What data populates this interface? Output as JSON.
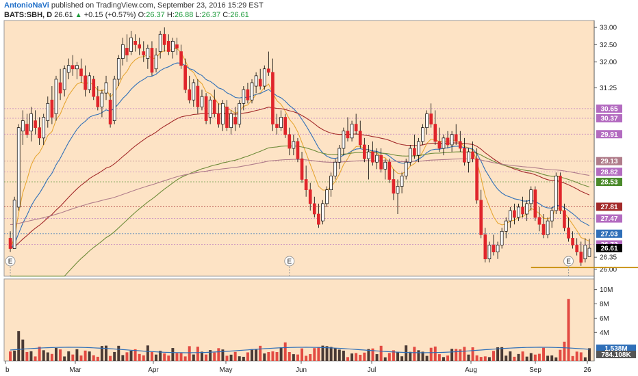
{
  "header": {
    "author": "AntonioNaVi",
    "published": "published on TradingView.com, September 23, 2016 15:29 EST",
    "symbol": "BATS:SBH, D",
    "last": "26.61",
    "change": "+0.15 (+0.57%)",
    "o_label": "O:",
    "o_value": "26.37",
    "h_label": "H:",
    "h_value": "26.88",
    "l_label": "L:",
    "l_value": "26.37",
    "c_label": "C:",
    "c_value": "26.61"
  },
  "colors": {
    "background": "#fde3c5",
    "up_candle": "#ffffff",
    "down_candle": "#e0252b",
    "ema_fast": "#e6a633",
    "ema_mid": "#2f6fb8",
    "sma_100": "#a32a2a",
    "sma_150": "#6f8c3a",
    "sma_200": "#b07c8a",
    "support": "#c58a00"
  },
  "chart_data": {
    "type": "candlestick",
    "ylim": [
      25.8,
      33.2
    ],
    "y_ticks": [
      26.0,
      26.35,
      26.7,
      27.05,
      27.4,
      27.75,
      28.1,
      28.45,
      28.8,
      29.15,
      29.5,
      29.85,
      30.2,
      30.55,
      30.9,
      31.25,
      31.6,
      32.0,
      32.5,
      33.0
    ],
    "y_tick_labels": [
      "26.00",
      "26.35",
      "",
      "",
      "",
      "",
      "",
      "",
      "",
      "",
      "",
      "",
      "",
      "",
      "",
      "31.25",
      "",
      "32.00",
      "32.50",
      "33.00"
    ],
    "x_labels": [
      "b",
      "Mar",
      "Apr",
      "May",
      "Jun",
      "Jul",
      "Aug",
      "Sep",
      "26"
    ],
    "price_tags": [
      {
        "value": 30.65,
        "label": "30.65",
        "color": "#b36bc0"
      },
      {
        "value": 30.37,
        "label": "30.37",
        "color": "#b36bc0"
      },
      {
        "value": 29.91,
        "label": "29.91",
        "color": "#b36bc0"
      },
      {
        "value": 29.13,
        "label": "29.13",
        "color": "#b07c8a"
      },
      {
        "value": 28.82,
        "label": "28.82",
        "color": "#b36bc0"
      },
      {
        "value": 28.53,
        "label": "28.53",
        "color": "#4a8a2a"
      },
      {
        "value": 27.81,
        "label": "27.81",
        "color": "#a32a2a"
      },
      {
        "value": 27.47,
        "label": "27.47",
        "color": "#b36bc0"
      },
      {
        "value": 27.03,
        "label": "27.03",
        "color": "#2f6fb8"
      },
      {
        "value": 26.72,
        "label": "26.72",
        "color": "#b36bc0"
      },
      {
        "value": 26.61,
        "label": "26.61",
        "color": "#000000"
      }
    ],
    "earnings_markers": [
      {
        "label": "E",
        "index": 0
      },
      {
        "label": "E",
        "index": 67
      },
      {
        "label": "E",
        "index": 134
      }
    ],
    "support_line": {
      "value": 26.05,
      "from_index": 125,
      "to_index": 171
    },
    "ohlc": [
      [
        26.9,
        27.1,
        26.5,
        26.6
      ],
      [
        26.6,
        28.1,
        26.6,
        28.0
      ],
      [
        27.8,
        30.2,
        27.7,
        30.1
      ],
      [
        30.0,
        30.6,
        29.6,
        30.3
      ],
      [
        30.2,
        30.5,
        29.8,
        29.9
      ],
      [
        30.0,
        30.7,
        29.7,
        30.5
      ],
      [
        30.3,
        30.6,
        29.9,
        30.1
      ],
      [
        30.1,
        30.4,
        29.6,
        29.8
      ],
      [
        29.8,
        30.5,
        29.6,
        30.4
      ],
      [
        30.3,
        31.0,
        30.1,
        30.8
      ],
      [
        30.9,
        31.3,
        30.2,
        30.4
      ],
      [
        30.5,
        31.6,
        30.3,
        31.5
      ],
      [
        31.4,
        31.8,
        30.9,
        31.1
      ],
      [
        31.2,
        31.9,
        31.0,
        31.8
      ],
      [
        31.7,
        32.1,
        31.5,
        31.9
      ],
      [
        31.9,
        32.2,
        31.6,
        31.8
      ],
      [
        31.8,
        32.0,
        31.5,
        31.9
      ],
      [
        31.8,
        32.1,
        31.4,
        31.6
      ],
      [
        31.6,
        31.9,
        31.0,
        31.2
      ],
      [
        31.2,
        31.7,
        31.1,
        31.6
      ],
      [
        31.5,
        31.6,
        30.9,
        31.0
      ],
      [
        31.0,
        31.3,
        30.6,
        30.7
      ],
      [
        30.7,
        31.2,
        30.4,
        31.1
      ],
      [
        31.1,
        31.6,
        30.9,
        31.4
      ],
      [
        30.9,
        31.1,
        30.1,
        30.2
      ],
      [
        30.3,
        31.6,
        30.2,
        31.5
      ],
      [
        31.5,
        32.2,
        31.3,
        32.1
      ],
      [
        32.1,
        32.7,
        31.9,
        32.5
      ],
      [
        32.4,
        32.8,
        32.0,
        32.2
      ],
      [
        32.3,
        32.9,
        32.2,
        32.7
      ],
      [
        32.6,
        32.8,
        32.3,
        32.5
      ],
      [
        32.5,
        32.7,
        32.2,
        32.4
      ],
      [
        32.3,
        32.6,
        32.0,
        32.2
      ],
      [
        32.1,
        32.5,
        31.8,
        32.4
      ],
      [
        32.4,
        32.6,
        31.6,
        31.7
      ],
      [
        31.8,
        32.4,
        31.7,
        32.2
      ],
      [
        32.3,
        32.9,
        32.1,
        32.8
      ],
      [
        32.8,
        33.0,
        32.3,
        32.5
      ],
      [
        32.6,
        32.8,
        32.2,
        32.3
      ],
      [
        32.3,
        32.7,
        32.1,
        32.6
      ],
      [
        32.5,
        32.7,
        32.2,
        32.4
      ],
      [
        32.3,
        32.5,
        31.8,
        31.9
      ],
      [
        31.9,
        32.1,
        31.1,
        31.2
      ],
      [
        31.2,
        31.6,
        30.8,
        30.9
      ],
      [
        30.9,
        31.5,
        30.7,
        31.4
      ],
      [
        31.3,
        31.5,
        30.5,
        30.7
      ],
      [
        30.7,
        31.2,
        30.6,
        31.0
      ],
      [
        31.0,
        31.1,
        30.2,
        30.3
      ],
      [
        30.4,
        31.0,
        30.2,
        30.9
      ],
      [
        30.9,
        31.2,
        30.4,
        30.5
      ],
      [
        30.5,
        30.8,
        30.1,
        30.2
      ],
      [
        30.2,
        30.9,
        30.0,
        30.8
      ],
      [
        30.7,
        30.9,
        30.0,
        30.1
      ],
      [
        30.1,
        30.6,
        29.9,
        30.5
      ],
      [
        30.4,
        30.7,
        30.0,
        30.2
      ],
      [
        30.2,
        30.9,
        30.1,
        30.8
      ],
      [
        30.8,
        31.3,
        30.6,
        31.2
      ],
      [
        31.2,
        31.4,
        30.8,
        30.9
      ],
      [
        30.9,
        31.5,
        30.8,
        31.4
      ],
      [
        31.3,
        31.7,
        31.1,
        31.6
      ],
      [
        31.5,
        31.8,
        31.2,
        31.3
      ],
      [
        31.3,
        31.9,
        31.2,
        31.8
      ],
      [
        31.8,
        32.3,
        31.6,
        31.7
      ],
      [
        31.7,
        32.1,
        30.0,
        30.2
      ],
      [
        30.2,
        30.5,
        29.9,
        30.1
      ],
      [
        30.1,
        30.6,
        30.0,
        30.4
      ],
      [
        30.4,
        30.5,
        29.8,
        29.9
      ],
      [
        29.9,
        30.1,
        29.3,
        29.5
      ],
      [
        29.5,
        29.9,
        29.3,
        29.7
      ],
      [
        29.7,
        29.8,
        29.1,
        29.2
      ],
      [
        29.2,
        29.4,
        28.5,
        28.6
      ],
      [
        28.6,
        29.0,
        28.1,
        28.3
      ],
      [
        28.3,
        28.5,
        27.7,
        27.9
      ],
      [
        27.9,
        28.1,
        27.5,
        27.6
      ],
      [
        27.6,
        27.9,
        27.2,
        27.3
      ],
      [
        27.4,
        28.0,
        27.3,
        27.9
      ],
      [
        27.9,
        28.4,
        27.8,
        28.3
      ],
      [
        28.3,
        28.8,
        28.1,
        28.7
      ],
      [
        28.7,
        29.2,
        28.6,
        29.1
      ],
      [
        29.1,
        29.6,
        28.9,
        29.5
      ],
      [
        29.5,
        30.1,
        29.3,
        30.0
      ],
      [
        30.0,
        30.4,
        29.7,
        29.8
      ],
      [
        29.8,
        30.3,
        29.7,
        30.2
      ],
      [
        30.2,
        30.5,
        29.9,
        30.0
      ],
      [
        30.0,
        30.3,
        29.5,
        29.6
      ],
      [
        29.6,
        29.8,
        29.1,
        29.2
      ],
      [
        29.2,
        29.6,
        28.6,
        29.4
      ],
      [
        29.4,
        29.7,
        29.0,
        29.1
      ],
      [
        29.1,
        29.5,
        28.9,
        29.3
      ],
      [
        29.3,
        29.5,
        28.8,
        28.9
      ],
      [
        28.9,
        29.2,
        28.6,
        29.1
      ],
      [
        29.1,
        29.2,
        28.5,
        28.6
      ],
      [
        28.6,
        28.9,
        28.0,
        28.2
      ],
      [
        28.2,
        28.6,
        27.6,
        28.4
      ],
      [
        28.4,
        28.8,
        28.2,
        28.7
      ],
      [
        28.7,
        29.2,
        28.6,
        29.1
      ],
      [
        29.1,
        29.6,
        29.0,
        29.5
      ],
      [
        29.5,
        29.9,
        29.2,
        29.3
      ],
      [
        29.3,
        29.8,
        29.1,
        29.7
      ],
      [
        29.7,
        30.2,
        29.6,
        30.1
      ],
      [
        30.1,
        30.6,
        29.9,
        30.5
      ],
      [
        30.5,
        30.8,
        30.1,
        30.2
      ],
      [
        30.2,
        30.6,
        29.6,
        29.7
      ],
      [
        29.7,
        30.1,
        29.4,
        29.5
      ],
      [
        29.5,
        29.9,
        29.3,
        29.8
      ],
      [
        29.8,
        30.0,
        29.5,
        29.6
      ],
      [
        29.6,
        30.0,
        29.4,
        29.9
      ],
      [
        29.9,
        30.2,
        29.6,
        29.7
      ],
      [
        29.7,
        30.0,
        29.4,
        29.5
      ],
      [
        29.5,
        29.8,
        29.0,
        29.1
      ],
      [
        29.1,
        29.5,
        28.8,
        29.4
      ],
      [
        29.4,
        29.7,
        29.1,
        29.2
      ],
      [
        29.2,
        29.5,
        27.9,
        28.0
      ],
      [
        28.0,
        28.3,
        26.9,
        27.0
      ],
      [
        27.0,
        27.2,
        26.2,
        26.3
      ],
      [
        26.3,
        26.8,
        26.2,
        26.7
      ],
      [
        26.7,
        27.0,
        26.4,
        26.5
      ],
      [
        26.5,
        26.8,
        26.3,
        26.7
      ],
      [
        26.7,
        27.2,
        26.6,
        27.1
      ],
      [
        27.1,
        27.5,
        26.9,
        27.4
      ],
      [
        27.4,
        27.8,
        27.2,
        27.7
      ],
      [
        27.7,
        27.9,
        27.3,
        27.5
      ],
      [
        27.5,
        27.9,
        27.4,
        27.8
      ],
      [
        27.8,
        28.1,
        27.5,
        27.6
      ],
      [
        27.6,
        28.0,
        27.4,
        27.9
      ],
      [
        27.9,
        28.4,
        27.7,
        28.3
      ],
      [
        28.3,
        28.4,
        27.4,
        27.5
      ],
      [
        27.5,
        27.8,
        27.1,
        27.3
      ],
      [
        27.3,
        27.6,
        26.9,
        27.0
      ],
      [
        27.0,
        27.5,
        26.9,
        27.4
      ],
      [
        27.4,
        27.8,
        27.2,
        27.7
      ],
      [
        27.7,
        28.8,
        27.6,
        28.7
      ],
      [
        28.7,
        28.8,
        27.6,
        27.7
      ],
      [
        27.7,
        27.9,
        27.1,
        27.2
      ],
      [
        27.2,
        27.5,
        26.8,
        26.9
      ],
      [
        26.9,
        27.1,
        26.6,
        26.7
      ],
      [
        26.7,
        26.9,
        26.4,
        26.5
      ],
      [
        26.5,
        26.8,
        26.1,
        26.2
      ],
      [
        26.3,
        26.9,
        26.2,
        26.7
      ],
      [
        26.37,
        26.88,
        26.37,
        26.61
      ]
    ],
    "volume_axis_labels": [
      "10M",
      "8M",
      "6M",
      "4M"
    ],
    "volume_axis_values": [
      10000000,
      8000000,
      6000000,
      4000000
    ],
    "volume_tags": [
      {
        "value": "1.538M",
        "color": "#2f6fb8"
      },
      {
        "value": "784.108K",
        "color": "#555555"
      }
    ],
    "volume_ma_value": 1538000,
    "volume_max": 11500000
  }
}
